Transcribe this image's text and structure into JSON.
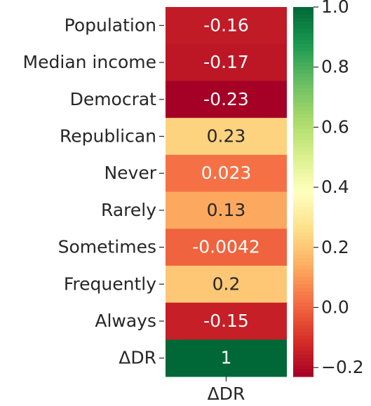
{
  "chart_data": {
    "type": "heatmap",
    "categories": [
      "Population",
      "Median income",
      "Democrat",
      "Republican",
      "Never",
      "Rarely",
      "Sometimes",
      "Frequently",
      "Always",
      "ΔDR"
    ],
    "columns": [
      "ΔDR"
    ],
    "values": [
      -0.16,
      -0.17,
      -0.23,
      0.23,
      0.023,
      0.13,
      -0.0042,
      0.2,
      -0.15,
      1
    ],
    "colormap": "RdYlGn",
    "clim": [
      -0.23,
      1
    ],
    "cticks": [
      {
        "value": 1.0,
        "label": "1.0"
      },
      0.8,
      0.6,
      0.4,
      0.2,
      {
        "value": 0.0,
        "label": "0.0"
      },
      {
        "value": -0.2,
        "label": "−0.2"
      }
    ]
  }
}
